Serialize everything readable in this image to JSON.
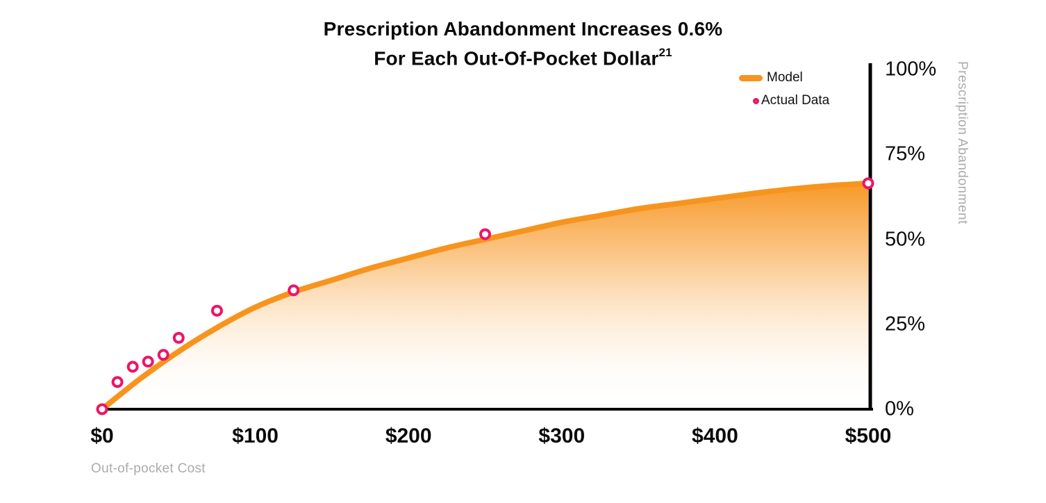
{
  "title": {
    "line1": "Prescription Abandonment Increases 0.6%",
    "line2": "For Each Out-Of-Pocket Dollar",
    "footnote_superscript": "21"
  },
  "legend": {
    "model_label": "Model",
    "actual_label": "Actual Data"
  },
  "axis_labels": {
    "x": "Out-of-pocket Cost",
    "y": "Prescription Abandonment"
  },
  "colors": {
    "model_orange": "#F7941E",
    "actual_pink": "#EC1566",
    "axis_black": "#000000",
    "label_gray": "#ABABAB"
  },
  "chart_data": {
    "type": "line",
    "title": "Prescription Abandonment Increases 0.6% For Each Out-Of-Pocket Dollar [21]",
    "xlabel": "Out-of-pocket Cost",
    "ylabel": "Prescription Abandonment",
    "xlim": [
      0,
      500
    ],
    "ylim": [
      0,
      100
    ],
    "grid": false,
    "legend_position": "top-right",
    "y_axis_side": "right",
    "x_ticks": [
      {
        "label": "$0",
        "value": 0
      },
      {
        "label": "$100",
        "value": 100
      },
      {
        "label": "$200",
        "value": 200
      },
      {
        "label": "$300",
        "value": 300
      },
      {
        "label": "$400",
        "value": 400
      },
      {
        "label": "$500",
        "value": 500
      }
    ],
    "y_ticks": [
      {
        "label": "0%",
        "value": 0
      },
      {
        "label": "25%",
        "value": 25
      },
      {
        "label": "50%",
        "value": 50
      },
      {
        "label": "75%",
        "value": 75
      },
      {
        "label": "100%",
        "value": 100
      }
    ],
    "series": [
      {
        "name": "Model",
        "type": "area-line",
        "color": "#F7941E",
        "x": [
          0,
          25,
          50,
          75,
          100,
          125,
          150,
          175,
          200,
          225,
          250,
          275,
          300,
          325,
          350,
          375,
          400,
          425,
          450,
          475,
          500
        ],
        "y": [
          0,
          9,
          17,
          24,
          30,
          34.5,
          38,
          41.5,
          44.5,
          47.5,
          50,
          52.5,
          55,
          57,
          59,
          60.5,
          62,
          63.5,
          64.8,
          65.8,
          66.5
        ]
      },
      {
        "name": "Actual Data",
        "type": "scatter",
        "color": "#EC1566",
        "points": [
          [
            0,
            0
          ],
          [
            10,
            8
          ],
          [
            20,
            12.5
          ],
          [
            30,
            14
          ],
          [
            40,
            16
          ],
          [
            50,
            21
          ],
          [
            75,
            29
          ],
          [
            125,
            35
          ],
          [
            250,
            51.5
          ],
          [
            500,
            66.5
          ]
        ]
      }
    ]
  }
}
